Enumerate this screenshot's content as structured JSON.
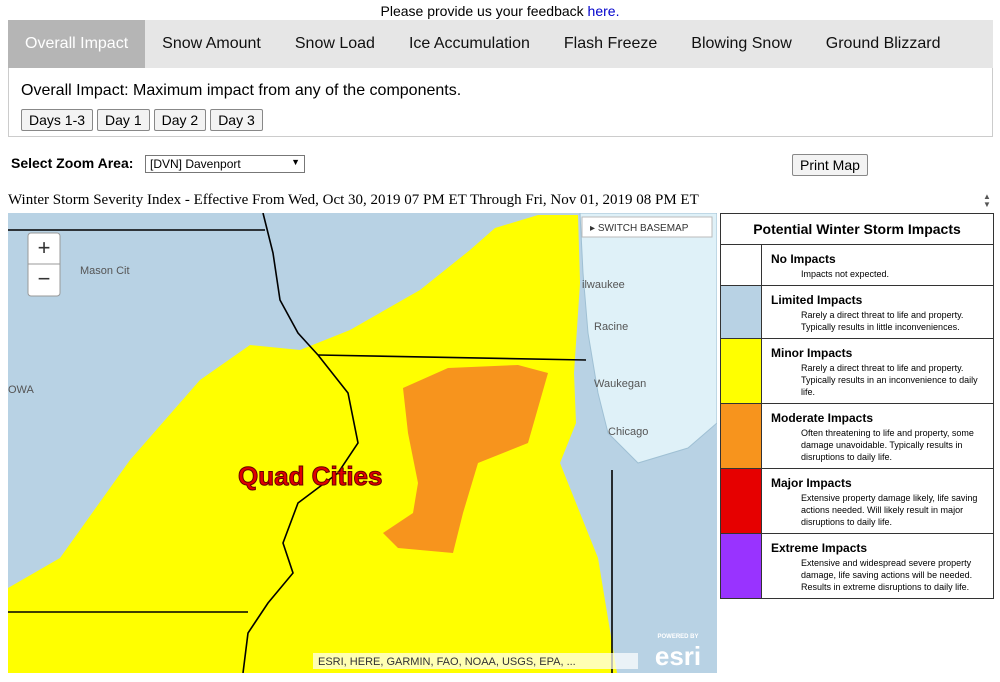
{
  "feedback": {
    "text": "Please provide us your feedback",
    "link": "here."
  },
  "tabs": [
    "Overall Impact",
    "Snow Amount",
    "Snow Load",
    "Ice Accumulation",
    "Flash Freeze",
    "Blowing Snow",
    "Ground Blizzard"
  ],
  "description": "Overall Impact: Maximum impact from any of the components.",
  "day_buttons": [
    "Days 1-3",
    "Day 1",
    "Day 2",
    "Day 3"
  ],
  "zoom": {
    "label": "Select Zoom Area:",
    "selected": "[DVN] Davenport"
  },
  "print_button": "Print Map",
  "map": {
    "title": "Winter Storm Severity Index - Effective From Wed, Oct 30, 2019 07 PM ET Through Fri, Nov 01, 2019 08 PM ET",
    "switch_basemap": "SWITCH BASEMAP",
    "zoom_in": "+",
    "zoom_out": "−",
    "labels": [
      "Mason Cit",
      "OWA",
      "ilwaukee",
      "Racine",
      "Waukegan",
      "Chicago"
    ],
    "highlight": "Quad Cities",
    "attribution": "ESRI, HERE, GARMIN, FAO, NOAA, USGS, EPA, ...",
    "logo_small": "POWERED BY",
    "logo": "esri"
  },
  "legend": {
    "title": "Potential Winter Storm Impacts",
    "items": [
      {
        "name": "No Impacts",
        "description": "Impacts not expected.",
        "color": "#ffffff"
      },
      {
        "name": "Limited Impacts",
        "description": "Rarely a direct threat to life and property. Typically results in little inconveniences.",
        "color": "#b8d2e4"
      },
      {
        "name": "Minor Impacts",
        "description": "Rarely a direct threat to life and property. Typically results in an inconvenience to daily life.",
        "color": "#ffff00"
      },
      {
        "name": "Moderate Impacts",
        "description": "Often threatening to life and property, some damage unavoidable. Typically results in disruptions to daily life.",
        "color": "#f7941d"
      },
      {
        "name": "Major Impacts",
        "description": "Extensive property damage likely, life saving actions needed. Will likely result in major disruptions to daily life.",
        "color": "#e60000"
      },
      {
        "name": "Extreme Impacts",
        "description": "Extensive and widespread severe property damage, life saving actions will be needed. Results in extreme disruptions to daily life.",
        "color": "#9933ff"
      }
    ]
  }
}
